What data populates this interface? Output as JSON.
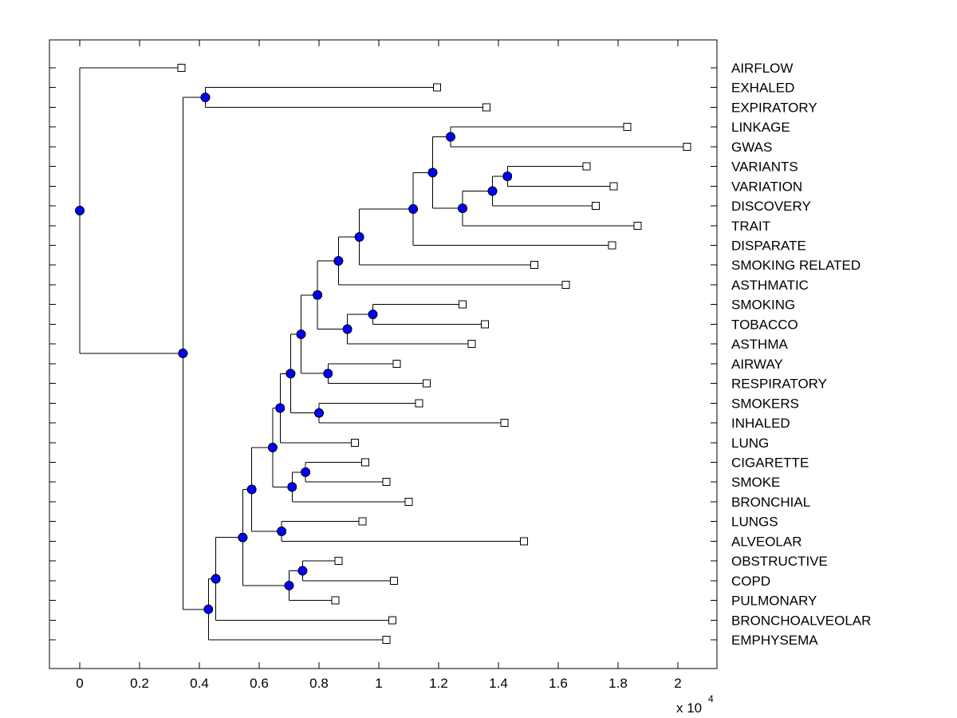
{
  "figure": {
    "background": "#ffffff"
  },
  "chart_data": {
    "type": "dendrogram",
    "title": "",
    "orientation": "root-left, leaves-right, leaf labels on right side",
    "grid": false,
    "legend": null,
    "x_axis": {
      "tick_labels": [
        "0",
        "0.2",
        "0.4",
        "0.6",
        "0.8",
        "1",
        "1.2",
        "1.4",
        "1.6",
        "1.8",
        "2"
      ],
      "tick_values": [
        0,
        2000,
        4000,
        6000,
        8000,
        10000,
        12000,
        14000,
        16000,
        18000,
        20000
      ],
      "multiplier_label": "x 10",
      "multiplier_exponent": "4",
      "xlim": [
        -1010,
        21300
      ]
    },
    "y_axis": {
      "leaf_labels": [
        "AIRFLOW",
        "EXHALED",
        "EXPIRATORY",
        "LINKAGE",
        "GWAS",
        "VARIANTS",
        "VARIATION",
        "DISCOVERY",
        "TRAIT",
        "DISPARATE",
        "SMOKING RELATED",
        "ASTHMATIC",
        "SMOKING",
        "TOBACCO",
        "ASTHMA",
        "AIRWAY",
        "RESPIRATORY",
        "SMOKERS",
        "INHALED",
        "LUNG",
        "CIGARETTE",
        "SMOKE",
        "BRONCHIAL",
        "LUNGS",
        "ALVEOLAR",
        "OBSTRUCTIVE",
        "COPD",
        "PULMONARY",
        "BRONCHOALVEOLAR",
        "EMPHYSEMA"
      ]
    },
    "colors": {
      "branch_line": "#000000",
      "internal_node_fill": "#0000ff",
      "internal_node_edge": "#000000",
      "leaf_marker_fill": "#ffffff",
      "leaf_marker_edge": "#000000",
      "text": "#000000",
      "axis_box": "#000000"
    },
    "markers": {
      "internal_node": "filled-circle",
      "leaf_node": "open-square"
    },
    "tree": {
      "d": 0,
      "children": [
        {
          "label": "AIRFLOW",
          "d": 3400
        },
        {
          "d": 3450,
          "children": [
            {
              "d": 4200,
              "children": [
                {
                  "label": "EXHALED",
                  "d": 11950
                },
                {
                  "label": "EXPIRATORY",
                  "d": 13600
                }
              ]
            },
            {
              "d": 4300,
              "children": [
                {
                  "d": 4550,
                  "children": [
                    {
                      "d": 5450,
                      "children": [
                        {
                          "d": 5750,
                          "children": [
                            {
                              "d": 6450,
                              "children": [
                                {
                                  "d": 6700,
                                  "children": [
                                    {
                                      "d": 7050,
                                      "children": [
                                        {
                                          "d": 7400,
                                          "children": [
                                            {
                                              "d": 7950,
                                              "children": [
                                                {
                                                  "d": 8650,
                                                  "children": [
                                                    {
                                                      "d": 9350,
                                                      "children": [
                                                        {
                                                          "d": 11150,
                                                          "children": [
                                                            {
                                                              "d": 11800,
                                                              "children": [
                                                                {
                                                                  "d": 12400,
                                                                  "children": [
                                                                    {
                                                                      "label": "LINKAGE",
                                                                      "d": 18300
                                                                    },
                                                                    {
                                                                      "label": "GWAS",
                                                                      "d": 20300
                                                                    }
                                                                  ]
                                                                },
                                                                {
                                                                  "d": 12800,
                                                                  "children": [
                                                                    {
                                                                      "d": 13800,
                                                                      "children": [
                                                                        {
                                                                          "d": 14300,
                                                                          "children": [
                                                                            {
                                                                              "label": "VARIANTS",
                                                                              "d": 16950
                                                                            },
                                                                            {
                                                                              "label": "VARIATION",
                                                                              "d": 17850
                                                                            }
                                                                          ]
                                                                        },
                                                                        {
                                                                          "label": "DISCOVERY",
                                                                          "d": 17250
                                                                        }
                                                                      ]
                                                                    },
                                                                    {
                                                                      "label": "TRAIT",
                                                                      "d": 18650
                                                                    }
                                                                  ]
                                                                }
                                                              ]
                                                            },
                                                            {
                                                              "label": "DISPARATE",
                                                              "d": 17800
                                                            }
                                                          ]
                                                        },
                                                        {
                                                          "label": "SMOKING RELATED",
                                                          "d": 15200
                                                        }
                                                      ]
                                                    },
                                                    {
                                                      "label": "ASTHMATIC",
                                                      "d": 16250
                                                    }
                                                  ]
                                                },
                                                {
                                                  "d": 8950,
                                                  "children": [
                                                    {
                                                      "d": 9800,
                                                      "children": [
                                                        {
                                                          "label": "SMOKING",
                                                          "d": 12800
                                                        },
                                                        {
                                                          "label": "TOBACCO",
                                                          "d": 13550
                                                        }
                                                      ]
                                                    },
                                                    {
                                                      "label": "ASTHMA",
                                                      "d": 13100
                                                    }
                                                  ]
                                                }
                                              ]
                                            },
                                            {
                                              "d": 8300,
                                              "children": [
                                                {
                                                  "label": "AIRWAY",
                                                  "d": 10600
                                                },
                                                {
                                                  "label": "RESPIRATORY",
                                                  "d": 11600
                                                }
                                              ]
                                            }
                                          ]
                                        },
                                        {
                                          "d": 8000,
                                          "children": [
                                            {
                                              "label": "SMOKERS",
                                              "d": 11350
                                            },
                                            {
                                              "label": "INHALED",
                                              "d": 14200
                                            }
                                          ]
                                        }
                                      ]
                                    },
                                    {
                                      "label": "LUNG",
                                      "d": 9200
                                    }
                                  ]
                                },
                                {
                                  "d": 7100,
                                  "children": [
                                    {
                                      "d": 7550,
                                      "children": [
                                        {
                                          "label": "CIGARETTE",
                                          "d": 9550
                                        },
                                        {
                                          "label": "SMOKE",
                                          "d": 10250
                                        }
                                      ]
                                    },
                                    {
                                      "label": "BRONCHIAL",
                                      "d": 11000
                                    }
                                  ]
                                }
                              ]
                            },
                            {
                              "d": 6750,
                              "children": [
                                {
                                  "label": "LUNGS",
                                  "d": 9450
                                },
                                {
                                  "label": "ALVEOLAR",
                                  "d": 14850
                                }
                              ]
                            }
                          ]
                        },
                        {
                          "d": 7000,
                          "children": [
                            {
                              "d": 7450,
                              "children": [
                                {
                                  "label": "OBSTRUCTIVE",
                                  "d": 8650
                                },
                                {
                                  "label": "COPD",
                                  "d": 10500
                                }
                              ]
                            },
                            {
                              "label": "PULMONARY",
                              "d": 8550
                            }
                          ]
                        }
                      ]
                    },
                    {
                      "label": "BRONCHOALVEOLAR",
                      "d": 10450
                    }
                  ]
                },
                {
                  "label": "EMPHYSEMA",
                  "d": 10250
                }
              ]
            }
          ]
        }
      ]
    }
  }
}
